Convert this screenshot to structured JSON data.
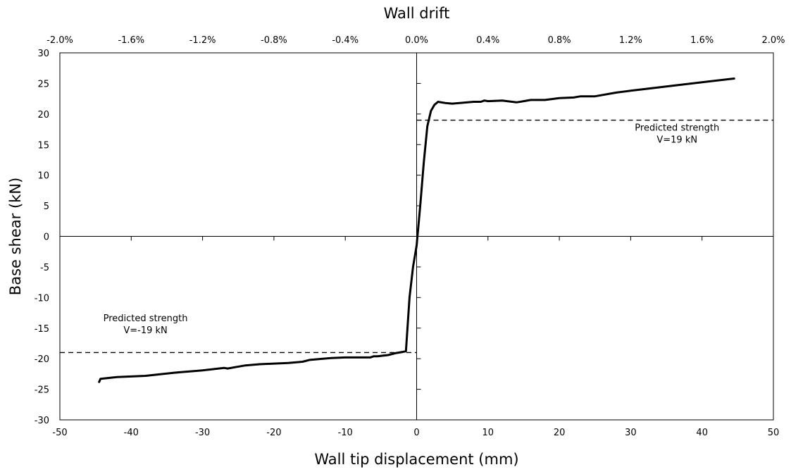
{
  "chart_data": {
    "type": "line",
    "title": "",
    "xlabel": "Wall tip displacement (mm)",
    "ylabel": "Base shear (kN)",
    "x2label": "Wall drift",
    "xlim": [
      -50,
      50
    ],
    "ylim": [
      -30,
      30
    ],
    "x2lim": [
      -0.02,
      0.02
    ],
    "xticks": [
      -50,
      -40,
      -30,
      -20,
      -10,
      0,
      10,
      20,
      30,
      40,
      50
    ],
    "xtick_labels": [
      "-50",
      "-40",
      "-30",
      "-20",
      "-10",
      "0",
      "10",
      "20",
      "30",
      "40",
      "50"
    ],
    "yticks": [
      -30,
      -25,
      -20,
      -15,
      -10,
      -5,
      0,
      5,
      10,
      15,
      20,
      25,
      30
    ],
    "ytick_labels": [
      "-30",
      "-25",
      "-20",
      "-15",
      "-10",
      "-5",
      "0",
      "5",
      "10",
      "15",
      "20",
      "25",
      "30"
    ],
    "x2ticks": [
      -0.02,
      -0.016,
      -0.012,
      -0.008,
      -0.004,
      0,
      0.004,
      0.008,
      0.012,
      0.016,
      0.02
    ],
    "x2tick_labels": [
      "-2.0%",
      "-1.6%",
      "-1.2%",
      "-0.8%",
      "-0.4%",
      "0.0%",
      "0.4%",
      "0.8%",
      "1.2%",
      "1.6%",
      "2.0%"
    ],
    "grid": false,
    "series": [
      {
        "color": "#000000",
        "style": "solid",
        "x": [
          -44.5,
          -44.3,
          -42,
          -38,
          -34,
          -30,
          -27,
          -26.5,
          -25.5,
          -24,
          -22,
          -20,
          -18,
          -16,
          -15,
          -14,
          -12,
          -10,
          -8,
          -6.5,
          -6,
          -5.5,
          -4,
          -3,
          -2,
          -1.5,
          -1,
          -0.5,
          0,
          0.5,
          1,
          1.5,
          2,
          2.5,
          3,
          4,
          5,
          6,
          8,
          9,
          9.5,
          10,
          12,
          14,
          15,
          16,
          18,
          20,
          22,
          23,
          25,
          28,
          30,
          35,
          40,
          44.5
        ],
        "y": [
          -23.8,
          -23.3,
          -23,
          -22.8,
          -22.3,
          -21.9,
          -21.5,
          -21.6,
          -21.4,
          -21.1,
          -20.9,
          -20.8,
          -20.7,
          -20.5,
          -20.2,
          -20.1,
          -19.9,
          -19.8,
          -19.8,
          -19.8,
          -19.6,
          -19.6,
          -19.4,
          -19.1,
          -18.9,
          -18.8,
          -10,
          -5,
          -1.5,
          5,
          12,
          18,
          20.5,
          21.5,
          22,
          21.8,
          21.7,
          21.8,
          22.0,
          22.0,
          22.2,
          22.1,
          22.2,
          21.9,
          22.1,
          22.3,
          22.3,
          22.6,
          22.7,
          22.9,
          22.9,
          23.5,
          23.8,
          24.5,
          25.2,
          25.8
        ]
      }
    ],
    "reference_lines": [
      {
        "color": "#000000",
        "style": "dashed",
        "x": [
          0,
          50
        ],
        "y": 19
      },
      {
        "color": "#000000",
        "style": "dashed",
        "x": [
          -50,
          0
        ],
        "y": -19
      }
    ],
    "annotations": [
      {
        "lines": [
          "Predicted strength",
          "V=19 kN"
        ],
        "x": 36.5,
        "y": 17.3
      },
      {
        "lines": [
          "Predicted strength",
          "V=-19 kN"
        ],
        "x": -38,
        "y": -13.9
      }
    ]
  }
}
